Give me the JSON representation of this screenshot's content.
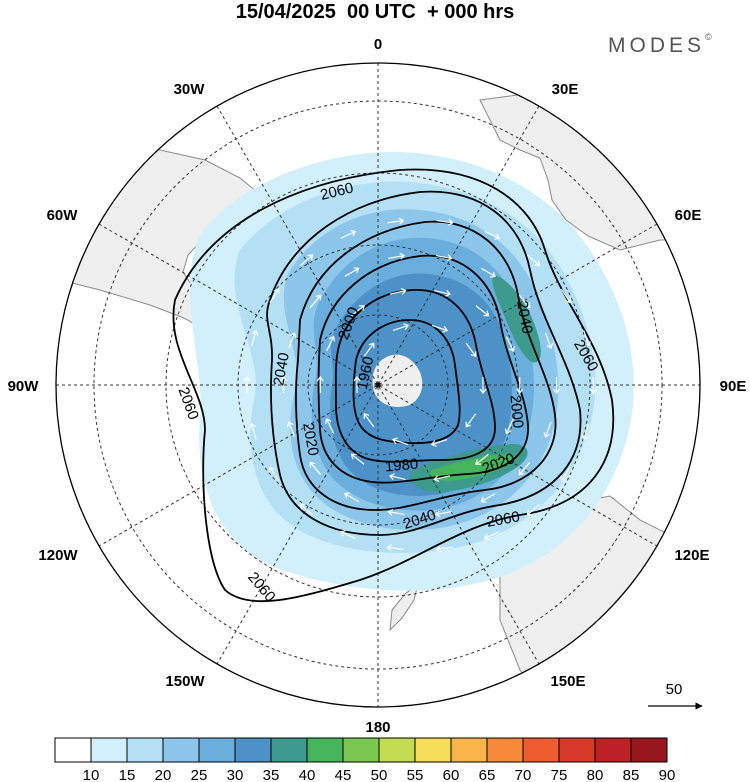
{
  "title": "15/04/2025  00 UTC  + 000 hrs",
  "brand": {
    "name": "MODES",
    "mark": "©"
  },
  "map": {
    "projection": "south-polar-stereographic",
    "meridian_labels": [
      {
        "lon": "0"
      },
      {
        "lon": "30E"
      },
      {
        "lon": "60E"
      },
      {
        "lon": "90E"
      },
      {
        "lon": "120E"
      },
      {
        "lon": "150E"
      },
      {
        "lon": "180"
      },
      {
        "lon": "150W"
      },
      {
        "lon": "120W"
      },
      {
        "lon": "90W"
      },
      {
        "lon": "60W"
      },
      {
        "lon": "30W"
      }
    ],
    "contour_labels": [
      "2060",
      "2060",
      "2060",
      "2060",
      "2060",
      "2040",
      "2040",
      "2040",
      "2040",
      "2020",
      "2020",
      "2000",
      "2000",
      "1980",
      "1960"
    ],
    "vector_reference": "50",
    "colors": {
      "land": "#efefef",
      "coast": "#8a8a8a",
      "grid": "#333333",
      "contour": "#000000"
    }
  },
  "colorbar": {
    "ticks": [
      "10",
      "15",
      "20",
      "25",
      "30",
      "35",
      "40",
      "45",
      "50",
      "55",
      "60",
      "65",
      "70",
      "75",
      "80",
      "85",
      "90"
    ],
    "colors": [
      "#ffffff",
      "#d2f0fb",
      "#b4e0f6",
      "#8cc6ea",
      "#6aaedd",
      "#4c92c8",
      "#3c9b8c",
      "#46b45a",
      "#7bc850",
      "#c3dc52",
      "#f8dd5b",
      "#f8b448",
      "#f48a3a",
      "#ec5d30",
      "#d83a2a",
      "#bd2125",
      "#98161d"
    ]
  }
}
